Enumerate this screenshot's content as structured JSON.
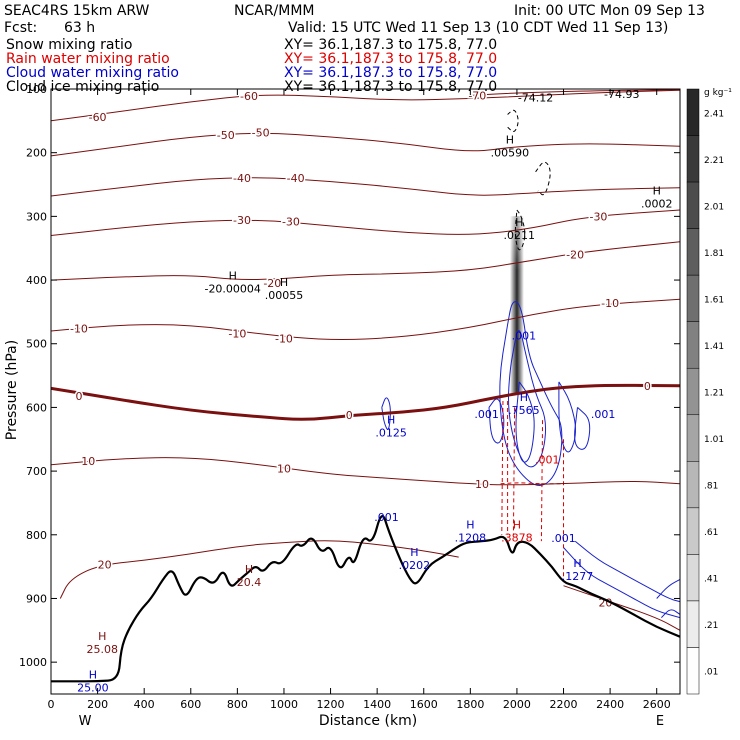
{
  "header": {
    "model": "SEAC4RS 15km ARW",
    "org": "NCAR/MMM",
    "init": "Init: 00 UTC Mon 09 Sep 13",
    "fcst_label": "Fcst:",
    "fcst_value": "63 h",
    "valid": "Valid: 15 UTC Wed 11 Sep 13 (10 CDT Wed 11 Sep 13)"
  },
  "fields": [
    {
      "name": "Snow mixing ratio",
      "xy": "XY= 36.1,187.3 to 175.8, 77.0",
      "color": "#000000"
    },
    {
      "name": "Rain water mixing ratio",
      "xy": "XY= 36.1,187.3 to 175.8, 77.0",
      "color": "#dd0000"
    },
    {
      "name": "Cloud water mixing ratio",
      "xy": "XY= 36.1,187.3 to 175.8, 77.0",
      "color": "#0000cc"
    },
    {
      "name": "Cloud ice mixing ratio",
      "xy": "XY= 36.1,187.3 to 175.8, 77.0",
      "color": "#000000"
    }
  ],
  "colorbar": {
    "unit": "g kg⁻¹",
    "labels": [
      "2.41",
      "2.21",
      "2.01",
      "1.81",
      "1.61",
      "1.41",
      "1.21",
      "1.01",
      ".81",
      ".61",
      ".41",
      ".21",
      ".01"
    ]
  },
  "chart_data": {
    "type": "contour-cross-section",
    "xlabel": "Distance (km)",
    "ylabel": "Pressure (hPa)",
    "xlim": [
      0,
      2700
    ],
    "ylim": [
      1050,
      100
    ],
    "x_ticks": [
      "0",
      "200",
      "400",
      "600",
      "800",
      "1000",
      "1200",
      "1400",
      "1600",
      "1800",
      "2000",
      "2200",
      "2400",
      "2600"
    ],
    "y_ticks": [
      "100",
      "200",
      "300",
      "400",
      "500",
      "600",
      "700",
      "800",
      "900",
      "1000"
    ],
    "x_end_labels": {
      "left": "W",
      "right": "E"
    },
    "temperature_contours": [
      {
        "label": "-60",
        "points": [
          [
            0,
            150
          ],
          [
            300,
            135
          ],
          [
            600,
            120
          ],
          [
            900,
            108
          ],
          [
            1200,
            112
          ],
          [
            1500,
            118
          ],
          [
            1800,
            115
          ],
          [
            2100,
            110
          ],
          [
            2400,
            105
          ],
          [
            2700,
            102
          ]
        ],
        "labels_at": [
          [
            200,
            144
          ],
          [
            850,
            111
          ]
        ]
      },
      {
        "label": "-50",
        "points": [
          [
            0,
            205
          ],
          [
            300,
            190
          ],
          [
            600,
            175
          ],
          [
            900,
            168
          ],
          [
            1200,
            175
          ],
          [
            1500,
            185
          ],
          [
            1800,
            200
          ],
          [
            2000,
            190
          ],
          [
            2300,
            185
          ],
          [
            2700,
            190
          ]
        ],
        "labels_at": [
          [
            750,
            172
          ],
          [
            900,
            168
          ]
        ]
      },
      {
        "label": "-40",
        "points": [
          [
            0,
            268
          ],
          [
            300,
            255
          ],
          [
            600,
            242
          ],
          [
            900,
            238
          ],
          [
            1200,
            245
          ],
          [
            1500,
            255
          ],
          [
            1800,
            268
          ],
          [
            2000,
            265
          ],
          [
            2300,
            258
          ],
          [
            2700,
            255
          ]
        ],
        "labels_at": [
          [
            820,
            240
          ],
          [
            1050,
            240
          ]
        ]
      },
      {
        "label": "-30",
        "points": [
          [
            0,
            330
          ],
          [
            300,
            318
          ],
          [
            600,
            308
          ],
          [
            900,
            305
          ],
          [
            1200,
            315
          ],
          [
            1500,
            325
          ],
          [
            1800,
            330
          ],
          [
            2050,
            320
          ],
          [
            2300,
            300
          ],
          [
            2700,
            290
          ]
        ],
        "labels_at": [
          [
            820,
            306
          ],
          [
            1030,
            308
          ],
          [
            2350,
            300
          ]
        ]
      },
      {
        "label": "-20",
        "points": [
          [
            0,
            400
          ],
          [
            300,
            395
          ],
          [
            600,
            392
          ],
          [
            800,
            400
          ],
          [
            1000,
            398
          ],
          [
            1200,
            392
          ],
          [
            1500,
            390
          ],
          [
            1800,
            385
          ],
          [
            2050,
            370
          ],
          [
            2300,
            355
          ],
          [
            2700,
            340
          ]
        ],
        "labels_at": [
          [
            950,
            405
          ],
          [
            2250,
            360
          ]
        ]
      },
      {
        "label": "-10",
        "points": [
          [
            0,
            480
          ],
          [
            300,
            470
          ],
          [
            600,
            470
          ],
          [
            900,
            485
          ],
          [
            1200,
            495
          ],
          [
            1500,
            490
          ],
          [
            1800,
            475
          ],
          [
            2050,
            455
          ],
          [
            2300,
            440
          ],
          [
            2700,
            430
          ]
        ],
        "labels_at": [
          [
            120,
            476
          ],
          [
            800,
            484
          ],
          [
            1000,
            492
          ],
          [
            2400,
            436
          ]
        ]
      },
      {
        "label": "0",
        "points": [
          [
            0,
            570
          ],
          [
            300,
            588
          ],
          [
            600,
            605
          ],
          [
            900,
            615
          ],
          [
            1100,
            620
          ],
          [
            1300,
            612
          ],
          [
            1500,
            608
          ],
          [
            1700,
            600
          ],
          [
            1900,
            585
          ],
          [
            2050,
            575
          ],
          [
            2200,
            568
          ],
          [
            2400,
            565
          ],
          [
            2700,
            566
          ]
        ],
        "labels_at": [
          [
            120,
            582
          ],
          [
            1280,
            612
          ],
          [
            2560,
            566
          ]
        ],
        "bold": true
      },
      {
        "label": "10",
        "points": [
          [
            0,
            690
          ],
          [
            300,
            680
          ],
          [
            600,
            678
          ],
          [
            900,
            690
          ],
          [
            1200,
            705
          ],
          [
            1400,
            710
          ],
          [
            1600,
            715
          ],
          [
            1800,
            720
          ],
          [
            1950,
            722
          ],
          [
            2200,
            720
          ],
          [
            2500,
            715
          ],
          [
            2700,
            720
          ]
        ],
        "labels_at": [
          [
            160,
            684
          ],
          [
            1000,
            696
          ],
          [
            1850,
            720
          ]
        ]
      },
      {
        "label": "20",
        "points": [
          [
            40,
            900
          ],
          [
            80,
            870
          ],
          [
            200,
            848
          ],
          [
            400,
            840
          ],
          [
            600,
            830
          ],
          [
            800,
            818
          ],
          [
            1000,
            812
          ],
          [
            1200,
            808
          ],
          [
            1400,
            815
          ],
          [
            1600,
            825
          ],
          [
            1750,
            835
          ]
        ],
        "labels_at": [
          [
            230,
            847
          ],
          [
            2380,
            906
          ]
        ]
      },
      {
        "label": "20",
        "points": [
          [
            2200,
            880
          ],
          [
            2400,
            905
          ],
          [
            2600,
            930
          ],
          [
            2700,
            950
          ]
        ],
        "labels_at": []
      },
      {
        "label": "-70",
        "points": [
          [
            1800,
            110
          ],
          [
            2000,
            106
          ],
          [
            2300,
            103
          ],
          [
            2700,
            101
          ]
        ],
        "labels_at": [
          [
            1830,
            110
          ]
        ]
      }
    ],
    "extrema": [
      {
        "label": "H",
        "value": ".00590",
        "x": 1970,
        "y": 190
      },
      {
        "label": "H",
        "value": ".0211",
        "x": 2010,
        "y": 320
      },
      {
        "label": "H",
        "value": ".0002",
        "x": 2600,
        "y": 270
      },
      {
        "label": "H",
        "value": ".00055",
        "x": 1000,
        "y": 414
      },
      {
        "label": "H",
        "value": "-20.00004",
        "x": 780,
        "y": 404
      },
      {
        "label": "",
        "value": "-74.12",
        "x": 2080,
        "y": 113
      },
      {
        "label": "",
        "value": "-74.93",
        "x": 2450,
        "y": 108
      },
      {
        "label": "H",
        "value": ".0125",
        "x": 1460,
        "y": 630,
        "color": "#0000cc"
      },
      {
        "label": "H",
        "value": ".1208",
        "x": 1800,
        "y": 795,
        "color": "#0000cc"
      },
      {
        "label": "H",
        "value": ".0202",
        "x": 1560,
        "y": 838,
        "color": "#0000cc"
      },
      {
        "label": "H",
        "value": ".1277",
        "x": 2260,
        "y": 855,
        "color": "#0000cc"
      },
      {
        "label": "H",
        "value": ".7565",
        "x": 2030,
        "y": 595,
        "color": "#0000cc"
      },
      {
        "label": "",
        "value": ".001",
        "x": 1870,
        "y": 610,
        "color": "#0000cc"
      },
      {
        "label": "",
        "value": ".001",
        "x": 2370,
        "y": 610,
        "color": "#0000cc"
      },
      {
        "label": "",
        "value": ".001",
        "x": 2030,
        "y": 487,
        "color": "#0000cc"
      },
      {
        "label": "",
        "value": ".001",
        "x": 2200,
        "y": 805,
        "color": "#0000cc"
      },
      {
        "label": "",
        "value": ".001",
        "x": 1440,
        "y": 772,
        "color": "#0000cc"
      },
      {
        "label": "H",
        "value": ".3878",
        "x": 2000,
        "y": 795,
        "color": "#dd0000"
      },
      {
        "label": "",
        "value": ".001",
        "x": 2130,
        "y": 682,
        "color": "#dd0000"
      },
      {
        "label": "H",
        "value": "20.4",
        "x": 850,
        "y": 865,
        "color": "#7a1010"
      },
      {
        "label": "H",
        "value": "25.08",
        "x": 220,
        "y": 970,
        "color": "#7a1010"
      },
      {
        "label": "H",
        "value": "25.00",
        "x": 180,
        "y": 1030,
        "color": "#0000cc"
      }
    ],
    "terrain": [
      [
        0,
        1030
      ],
      [
        100,
        1030
      ],
      [
        200,
        1030
      ],
      [
        290,
        1028
      ],
      [
        300,
        980
      ],
      [
        330,
        950
      ],
      [
        380,
        920
      ],
      [
        430,
        900
      ],
      [
        480,
        870
      ],
      [
        520,
        852
      ],
      [
        550,
        880
      ],
      [
        580,
        900
      ],
      [
        620,
        870
      ],
      [
        650,
        865
      ],
      [
        700,
        880
      ],
      [
        740,
        852
      ],
      [
        770,
        885
      ],
      [
        810,
        870
      ],
      [
        850,
        858
      ],
      [
        880,
        848
      ],
      [
        910,
        860
      ],
      [
        950,
        840
      ],
      [
        990,
        848
      ],
      [
        1050,
        812
      ],
      [
        1080,
        820
      ],
      [
        1120,
        800
      ],
      [
        1160,
        830
      ],
      [
        1200,
        815
      ],
      [
        1240,
        860
      ],
      [
        1280,
        830
      ],
      [
        1300,
        850
      ],
      [
        1340,
        800
      ],
      [
        1380,
        815
      ],
      [
        1420,
        760
      ],
      [
        1450,
        795
      ],
      [
        1500,
        840
      ],
      [
        1540,
        870
      ],
      [
        1570,
        880
      ],
      [
        1620,
        848
      ],
      [
        1680,
        835
      ],
      [
        1740,
        820
      ],
      [
        1780,
        812
      ],
      [
        1850,
        810
      ],
      [
        1900,
        808
      ],
      [
        1950,
        800
      ],
      [
        1980,
        835
      ],
      [
        2000,
        810
      ],
      [
        2050,
        812
      ],
      [
        2100,
        830
      ],
      [
        2150,
        850
      ],
      [
        2200,
        875
      ],
      [
        2250,
        880
      ],
      [
        2320,
        893
      ],
      [
        2400,
        905
      ],
      [
        2500,
        925
      ],
      [
        2600,
        945
      ],
      [
        2700,
        960
      ]
    ],
    "cloud_core": {
      "x": 2000,
      "top": 300,
      "bottom": 580,
      "max_value": 2.41
    }
  }
}
